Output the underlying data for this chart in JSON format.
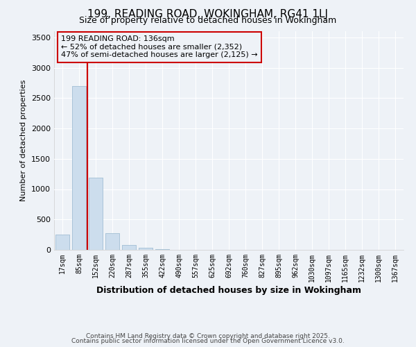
{
  "title_line1": "199, READING ROAD, WOKINGHAM, RG41 1LJ",
  "title_line2": "Size of property relative to detached houses in Wokingham",
  "xlabel": "Distribution of detached houses by size in Wokingham",
  "ylabel": "Number of detached properties",
  "bar_color": "#ccdded",
  "bar_edge_color": "#aac4d8",
  "vline_color": "#cc0000",
  "annotation_text": "199 READING ROAD: 136sqm\n← 52% of detached houses are smaller (2,352)\n47% of semi-detached houses are larger (2,125) →",
  "annotation_box_color": "#cc0000",
  "categories": [
    "17sqm",
    "85sqm",
    "152sqm",
    "220sqm",
    "287sqm",
    "355sqm",
    "422sqm",
    "490sqm",
    "557sqm",
    "625sqm",
    "692sqm",
    "760sqm",
    "827sqm",
    "895sqm",
    "962sqm",
    "1030sqm",
    "1097sqm",
    "1165sqm",
    "1232sqm",
    "1300sqm",
    "1367sqm"
  ],
  "values": [
    255,
    2700,
    1185,
    275,
    85,
    35,
    8,
    0,
    0,
    0,
    0,
    0,
    0,
    0,
    0,
    0,
    0,
    0,
    0,
    0,
    0
  ],
  "ylim": [
    0,
    3600
  ],
  "yticks": [
    0,
    500,
    1000,
    1500,
    2000,
    2500,
    3000,
    3500
  ],
  "background_color": "#eef2f7",
  "grid_color": "#ffffff",
  "footer_line1": "Contains HM Land Registry data © Crown copyright and database right 2025.",
  "footer_line2": "Contains public sector information licensed under the Open Government Licence v3.0."
}
